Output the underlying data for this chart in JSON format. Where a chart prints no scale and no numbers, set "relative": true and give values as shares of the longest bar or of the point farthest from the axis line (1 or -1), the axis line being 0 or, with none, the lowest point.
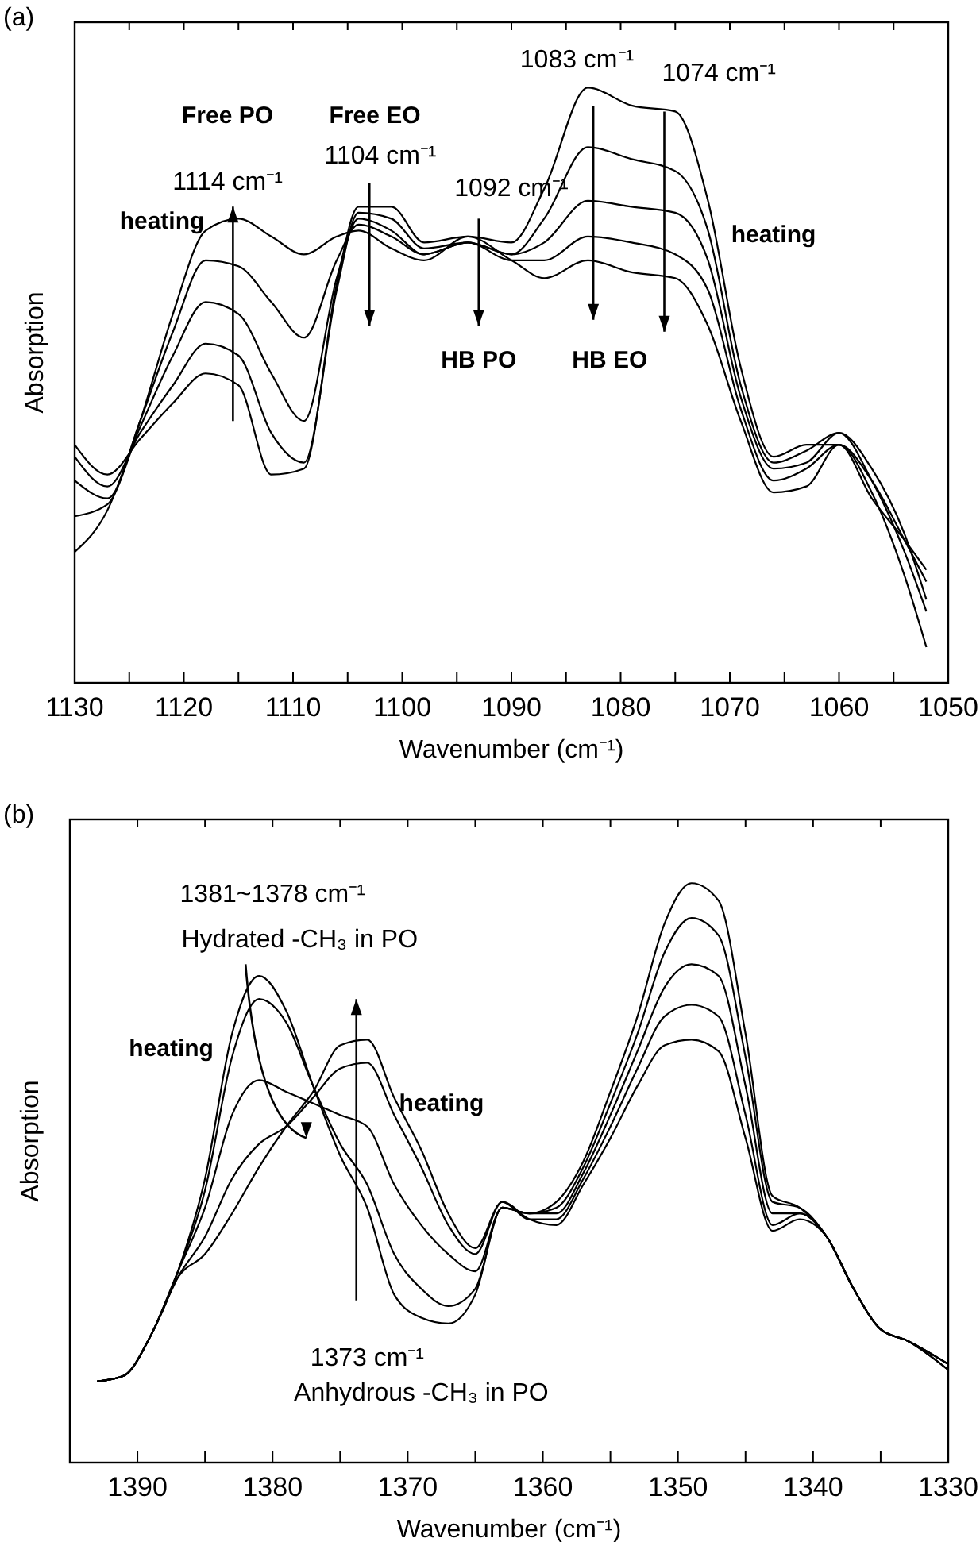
{
  "chart_data": [
    {
      "type": "line",
      "relative": true,
      "xlabel": "Wavenumber (cm⁻¹)",
      "ylabel": "Absorption",
      "xlim": [
        1130,
        1050
      ],
      "xticks": [
        1130,
        {
          "value": 1125,
          "label": null
        },
        1120,
        {
          "value": 1115,
          "label": null
        },
        1110,
        {
          "value": 1105,
          "label": null
        },
        1100,
        {
          "value": 1095,
          "label": null
        },
        1090,
        {
          "value": 1085,
          "label": null
        },
        1080,
        {
          "value": 1075,
          "label": null
        },
        1070,
        {
          "value": 1065,
          "label": null
        },
        1060,
        {
          "value": 1055,
          "label": null
        },
        1050
      ],
      "x": [
        1130,
        1127,
        1124,
        1121,
        1118,
        1115,
        1112,
        1109,
        1106,
        1104,
        1101,
        1098,
        1094,
        1090,
        1087,
        1083,
        1079,
        1075,
        1072,
        1069,
        1066,
        1063,
        1060,
        1057,
        1054,
        1052
      ],
      "series": [
        {
          "color": "#000000",
          "values": [
            0.4,
            0.35,
            0.41,
            0.47,
            0.52,
            0.5,
            0.35,
            0.36,
            0.67,
            0.8,
            0.8,
            0.74,
            0.75,
            0.74,
            0.83,
            1.0,
            0.97,
            0.96,
            0.81,
            0.53,
            0.38,
            0.4,
            0.4,
            0.32,
            0.18,
            0.06
          ]
        },
        {
          "color": "#000000",
          "values": [
            0.38,
            0.33,
            0.42,
            0.5,
            0.57,
            0.55,
            0.42,
            0.37,
            0.66,
            0.79,
            0.78,
            0.73,
            0.74,
            0.72,
            0.78,
            0.9,
            0.88,
            0.86,
            0.76,
            0.5,
            0.37,
            0.39,
            0.42,
            0.34,
            0.22,
            0.12
          ]
        },
        {
          "color": "#000000",
          "values": [
            0.34,
            0.31,
            0.43,
            0.55,
            0.64,
            0.62,
            0.52,
            0.44,
            0.68,
            0.78,
            0.76,
            0.72,
            0.74,
            0.72,
            0.74,
            0.81,
            0.8,
            0.79,
            0.71,
            0.48,
            0.36,
            0.37,
            0.42,
            0.36,
            0.25,
            0.14
          ]
        },
        {
          "color": "#000000",
          "values": [
            0.28,
            0.3,
            0.44,
            0.59,
            0.71,
            0.7,
            0.64,
            0.58,
            0.71,
            0.77,
            0.75,
            0.72,
            0.74,
            0.71,
            0.71,
            0.75,
            0.74,
            0.72,
            0.66,
            0.46,
            0.34,
            0.36,
            0.4,
            0.34,
            0.24,
            0.17
          ]
        },
        {
          "color": "#000000",
          "values": [
            0.22,
            0.29,
            0.44,
            0.62,
            0.76,
            0.78,
            0.75,
            0.72,
            0.75,
            0.76,
            0.73,
            0.71,
            0.75,
            0.71,
            0.68,
            0.71,
            0.69,
            0.68,
            0.6,
            0.44,
            0.32,
            0.33,
            0.4,
            0.31,
            0.24,
            0.19
          ]
        }
      ],
      "annotations": [
        "(a)",
        "Free PO",
        "Free EO",
        "1114 cm⁻¹",
        "1104 cm⁻¹",
        "1092 cm⁻¹",
        "1083 cm⁻¹",
        "1074 cm⁻¹",
        "heating",
        "heating",
        "HB PO",
        "HB EO"
      ]
    },
    {
      "type": "line",
      "relative": true,
      "xlabel": "Wavenumber (cm⁻¹)",
      "ylabel": "Absorption",
      "xlim": [
        1395,
        1330
      ],
      "xticks": [
        1390,
        {
          "value": 1385,
          "label": null
        },
        1380,
        {
          "value": 1375,
          "label": null
        },
        1370,
        {
          "value": 1365,
          "label": null
        },
        1360,
        {
          "value": 1355,
          "label": null
        },
        1350,
        {
          "value": 1345,
          "label": null
        },
        1340,
        {
          "value": 1335,
          "label": null
        },
        1330
      ],
      "x": [
        1393,
        1391,
        1389,
        1387,
        1385,
        1383,
        1381,
        1379,
        1377,
        1375,
        1373,
        1371,
        1369,
        1367,
        1365,
        1363,
        1361,
        1359,
        1357,
        1355,
        1353,
        1351,
        1349,
        1347,
        1345,
        1343,
        1341,
        1339,
        1337,
        1335,
        1333,
        1330
      ],
      "series": [
        {
          "color": "#000000",
          "values": [
            0.14,
            0.15,
            0.22,
            0.33,
            0.49,
            0.74,
            0.84,
            0.78,
            0.65,
            0.53,
            0.44,
            0.29,
            0.25,
            0.24,
            0.29,
            0.44,
            0.43,
            0.45,
            0.52,
            0.64,
            0.77,
            0.93,
            1.0,
            0.97,
            0.74,
            0.46,
            0.44,
            0.39,
            0.3,
            0.23,
            0.21,
            0.17
          ]
        },
        {
          "color": "#000000",
          "values": [
            0.14,
            0.15,
            0.22,
            0.33,
            0.47,
            0.7,
            0.8,
            0.76,
            0.65,
            0.55,
            0.48,
            0.36,
            0.3,
            0.27,
            0.3,
            0.44,
            0.43,
            0.44,
            0.51,
            0.62,
            0.74,
            0.88,
            0.94,
            0.91,
            0.7,
            0.45,
            0.44,
            0.39,
            0.3,
            0.23,
            0.21,
            0.17
          ]
        },
        {
          "color": "#000000",
          "values": [
            0.14,
            0.15,
            0.22,
            0.33,
            0.44,
            0.6,
            0.66,
            0.64,
            0.62,
            0.6,
            0.58,
            0.48,
            0.41,
            0.36,
            0.33,
            0.44,
            0.43,
            0.43,
            0.5,
            0.6,
            0.71,
            0.82,
            0.86,
            0.84,
            0.65,
            0.43,
            0.43,
            0.39,
            0.3,
            0.23,
            0.21,
            0.17
          ]
        },
        {
          "color": "#000000",
          "values": [
            0.14,
            0.15,
            0.22,
            0.32,
            0.39,
            0.49,
            0.55,
            0.58,
            0.63,
            0.68,
            0.69,
            0.6,
            0.51,
            0.41,
            0.36,
            0.45,
            0.42,
            0.42,
            0.49,
            0.58,
            0.68,
            0.77,
            0.79,
            0.77,
            0.6,
            0.41,
            0.43,
            0.39,
            0.3,
            0.23,
            0.21,
            0.16
          ]
        },
        {
          "color": "#000000",
          "values": [
            0.14,
            0.15,
            0.22,
            0.32,
            0.36,
            0.43,
            0.51,
            0.58,
            0.64,
            0.72,
            0.73,
            0.63,
            0.54,
            0.43,
            0.37,
            0.45,
            0.42,
            0.41,
            0.48,
            0.56,
            0.65,
            0.72,
            0.73,
            0.71,
            0.56,
            0.4,
            0.42,
            0.39,
            0.3,
            0.23,
            0.21,
            0.16
          ]
        }
      ],
      "annotations": [
        "(b)",
        "1381~1378 cm⁻¹",
        "Hydrated -CH₃ in PO",
        "heating",
        "heating",
        "1373 cm⁻¹",
        "Anhydrous -CH₃ in PO"
      ]
    }
  ]
}
